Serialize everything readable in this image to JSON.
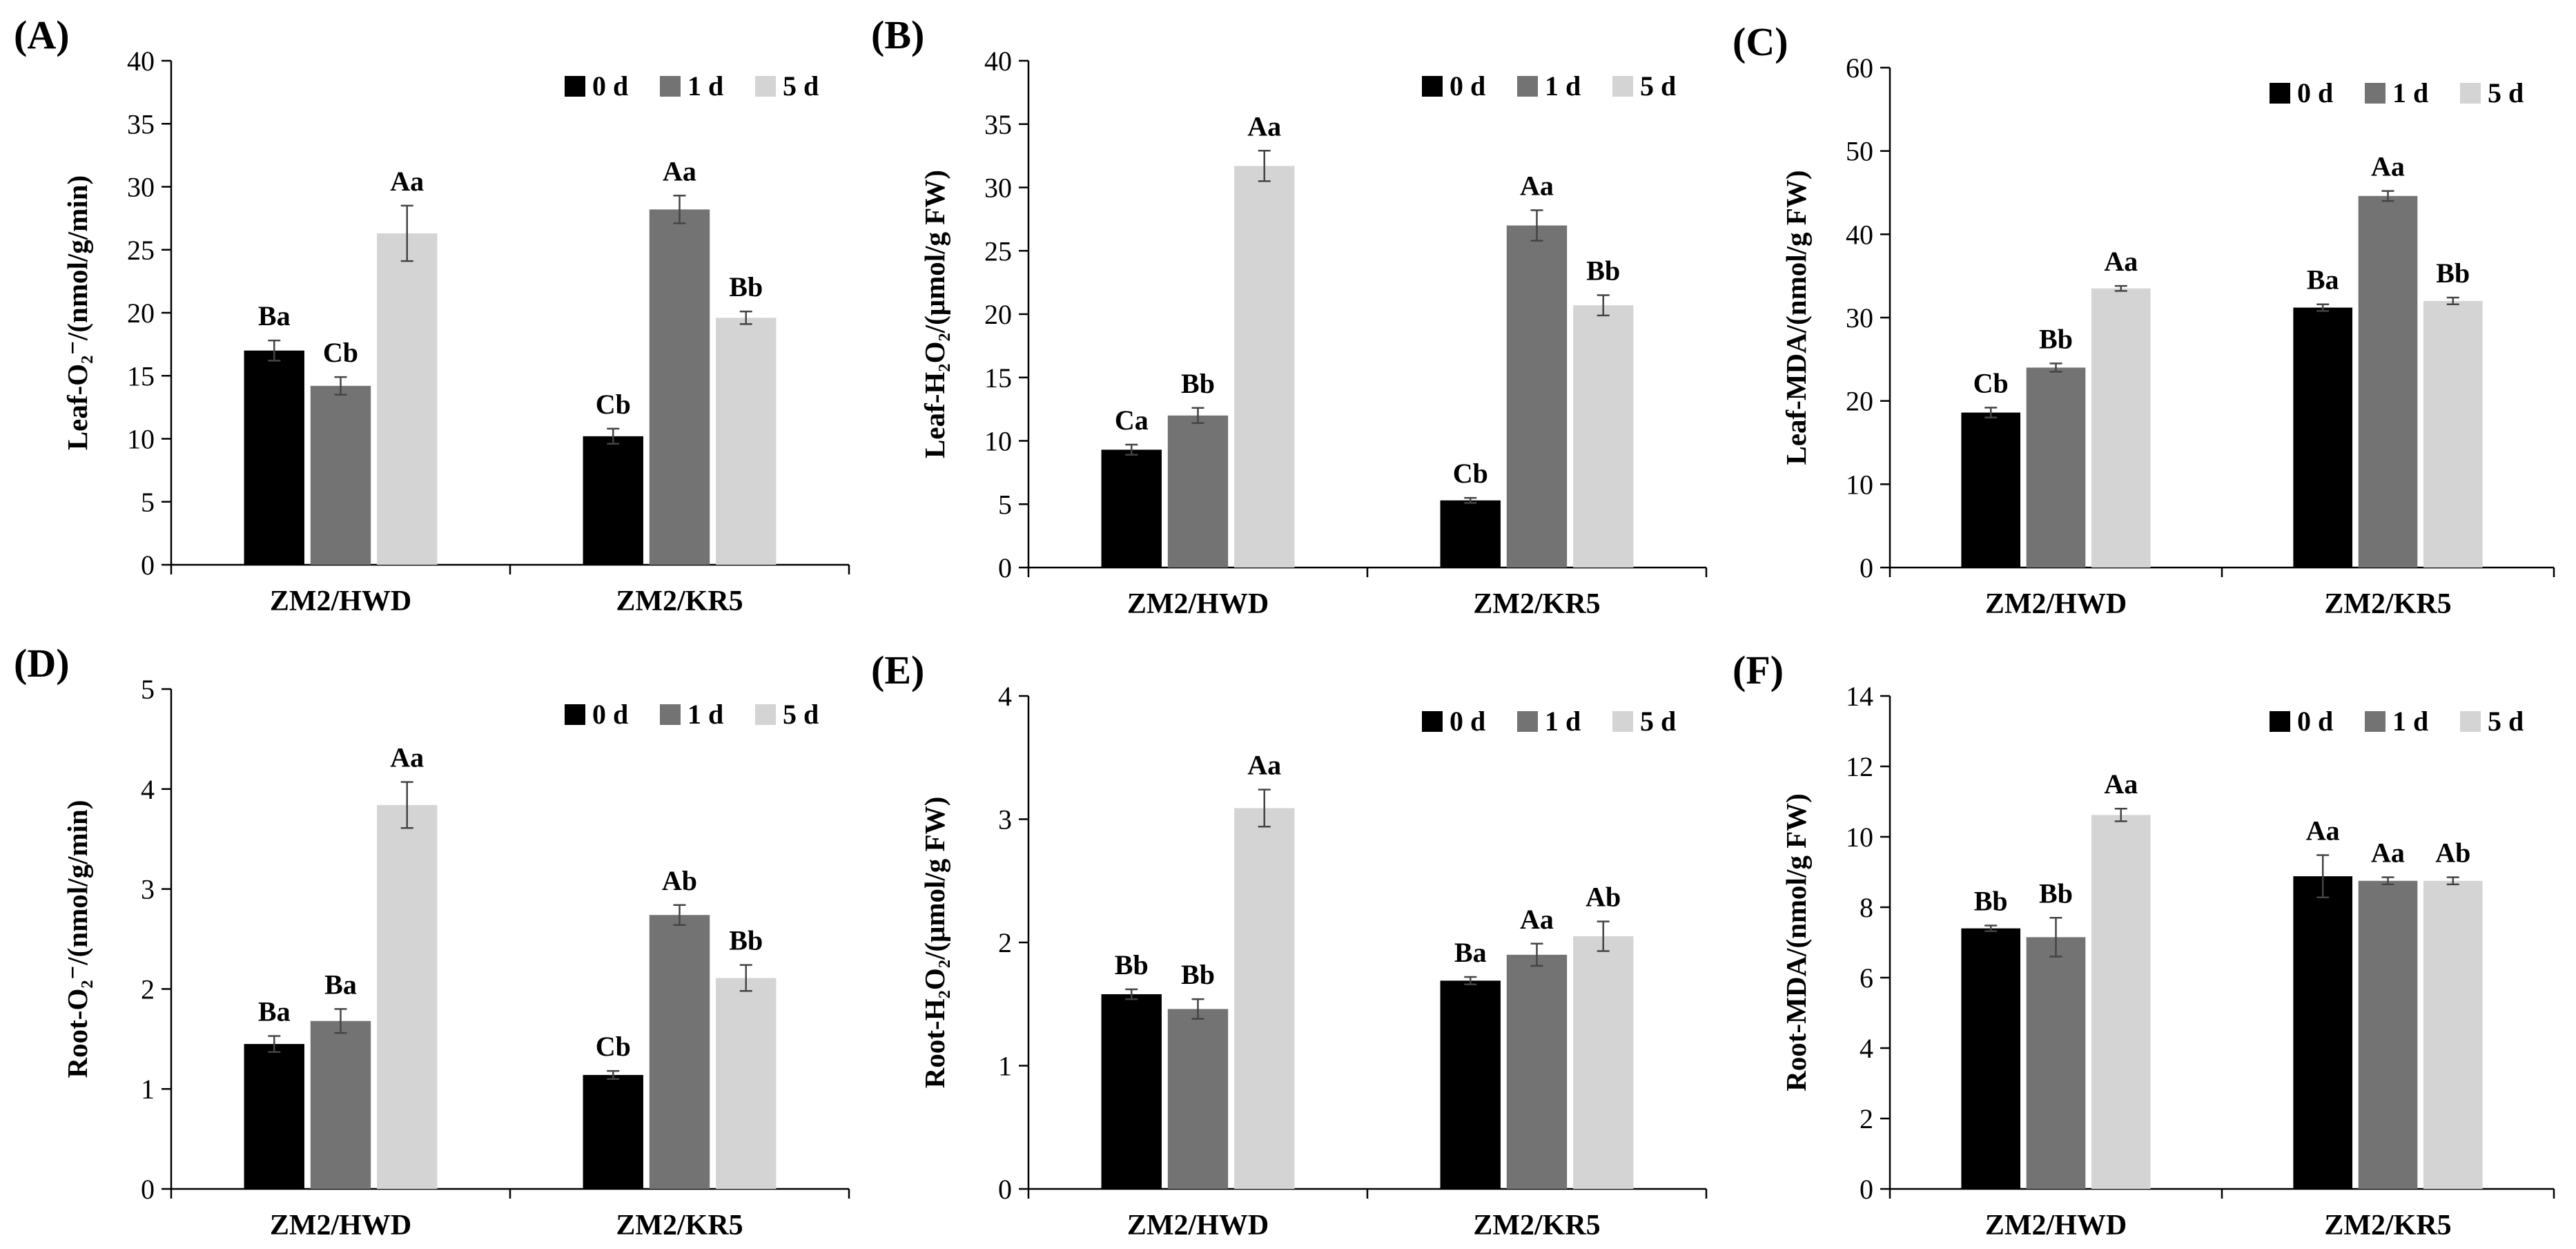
{
  "figure": {
    "legend": [
      {
        "label": "0 d",
        "color": "#000000"
      },
      {
        "label": "1 d",
        "color": "#737373"
      },
      {
        "label": "5 d",
        "color": "#d4d4d4"
      }
    ]
  },
  "chart_data": [
    {
      "panel": "(A)",
      "type": "bar",
      "ylabel": "Leaf-O₂⁻/(nmol/g/min)",
      "ylim": [
        0,
        40
      ],
      "yticks": [
        0,
        5,
        10,
        15,
        20,
        25,
        30,
        35,
        40
      ],
      "categories": [
        "ZM2/HWD",
        "ZM2/KR5"
      ],
      "series": [
        {
          "name": "0 d",
          "values": [
            17.0,
            10.2
          ],
          "errors": [
            0.8,
            0.6
          ],
          "labels": [
            "Ba",
            "Cb"
          ]
        },
        {
          "name": "1 d",
          "values": [
            14.2,
            28.2
          ],
          "errors": [
            0.7,
            1.1
          ],
          "labels": [
            "Cb",
            "Aa"
          ]
        },
        {
          "name": "5 d",
          "values": [
            26.3,
            19.6
          ],
          "errors": [
            2.2,
            0.5
          ],
          "labels": [
            "Aa",
            "Bb"
          ]
        }
      ]
    },
    {
      "panel": "(B)",
      "type": "bar",
      "ylabel": "Leaf-H₂O₂/(μmol/g FW)",
      "ylim": [
        0,
        40
      ],
      "yticks": [
        0,
        5,
        10,
        15,
        20,
        25,
        30,
        35,
        40
      ],
      "categories": [
        "ZM2/HWD",
        "ZM2/KR5"
      ],
      "series": [
        {
          "name": "0 d",
          "values": [
            9.3,
            5.3
          ],
          "errors": [
            0.4,
            0.2
          ],
          "labels": [
            "Ca",
            "Cb"
          ]
        },
        {
          "name": "1 d",
          "values": [
            12.0,
            27.0
          ],
          "errors": [
            0.6,
            1.2
          ],
          "labels": [
            "Bb",
            "Aa"
          ]
        },
        {
          "name": "5 d",
          "values": [
            31.7,
            20.7
          ],
          "errors": [
            1.2,
            0.8
          ],
          "labels": [
            "Aa",
            "Bb"
          ]
        }
      ]
    },
    {
      "panel": "(C)",
      "type": "bar",
      "ylabel": "Leaf-MDA/(nmol/g FW)",
      "ylim": [
        0,
        60
      ],
      "yticks": [
        0,
        10,
        20,
        30,
        40,
        50,
        60
      ],
      "categories": [
        "ZM2/HWD",
        "ZM2/KR5"
      ],
      "series": [
        {
          "name": "0 d",
          "values": [
            18.6,
            31.2
          ],
          "errors": [
            0.6,
            0.4
          ],
          "labels": [
            "Cb",
            "Ba"
          ]
        },
        {
          "name": "1 d",
          "values": [
            24.0,
            44.6
          ],
          "errors": [
            0.5,
            0.6
          ],
          "labels": [
            "Bb",
            "Aa"
          ]
        },
        {
          "name": "5 d",
          "values": [
            33.5,
            32.0
          ],
          "errors": [
            0.3,
            0.4
          ],
          "labels": [
            "Aa",
            "Bb"
          ]
        }
      ]
    },
    {
      "panel": "(D)",
      "type": "bar",
      "ylabel": "Root-O₂⁻/(nmol/g/min)",
      "ylim": [
        0,
        5
      ],
      "yticks": [
        0,
        1,
        2,
        3,
        4,
        5
      ],
      "categories": [
        "ZM2/HWD",
        "ZM2/KR5"
      ],
      "series": [
        {
          "name": "0 d",
          "values": [
            1.45,
            1.14
          ],
          "errors": [
            0.08,
            0.04
          ],
          "labels": [
            "Ba",
            "Cb"
          ]
        },
        {
          "name": "1 d",
          "values": [
            1.68,
            2.74
          ],
          "errors": [
            0.12,
            0.1
          ],
          "labels": [
            "Ba",
            "Ab"
          ]
        },
        {
          "name": "5 d",
          "values": [
            3.84,
            2.11
          ],
          "errors": [
            0.23,
            0.13
          ],
          "labels": [
            "Aa",
            "Bb"
          ]
        }
      ]
    },
    {
      "panel": "(E)",
      "type": "bar",
      "ylabel": "Root-H₂O₂/(μmol/g FW)",
      "ylim": [
        0,
        4
      ],
      "yticks": [
        0,
        1,
        2,
        3,
        4
      ],
      "categories": [
        "ZM2/HWD",
        "ZM2/KR5"
      ],
      "series": [
        {
          "name": "0 d",
          "values": [
            1.58,
            1.69
          ],
          "errors": [
            0.04,
            0.03
          ],
          "labels": [
            "Bb",
            "Ba"
          ]
        },
        {
          "name": "1 d",
          "values": [
            1.46,
            1.9
          ],
          "errors": [
            0.08,
            0.09
          ],
          "labels": [
            "Bb",
            "Aa"
          ]
        },
        {
          "name": "5 d",
          "values": [
            3.09,
            2.05
          ],
          "errors": [
            0.15,
            0.12
          ],
          "labels": [
            "Aa",
            "Ab"
          ]
        }
      ]
    },
    {
      "panel": "(F)",
      "type": "bar",
      "ylabel": "Root-MDA/(nmol/g FW)",
      "ylim": [
        0,
        14
      ],
      "yticks": [
        0,
        2,
        4,
        6,
        8,
        10,
        12,
        14
      ],
      "categories": [
        "ZM2/HWD",
        "ZM2/KR5"
      ],
      "series": [
        {
          "name": "0 d",
          "values": [
            7.4,
            8.88
          ],
          "errors": [
            0.08,
            0.6
          ],
          "labels": [
            "Bb",
            "Aa"
          ]
        },
        {
          "name": "1 d",
          "values": [
            7.15,
            8.75
          ],
          "errors": [
            0.55,
            0.1
          ],
          "labels": [
            "Bb",
            "Aa"
          ]
        },
        {
          "name": "5 d",
          "values": [
            10.62,
            8.75
          ],
          "errors": [
            0.18,
            0.1
          ],
          "labels": [
            "Aa",
            "Ab"
          ]
        }
      ]
    }
  ]
}
